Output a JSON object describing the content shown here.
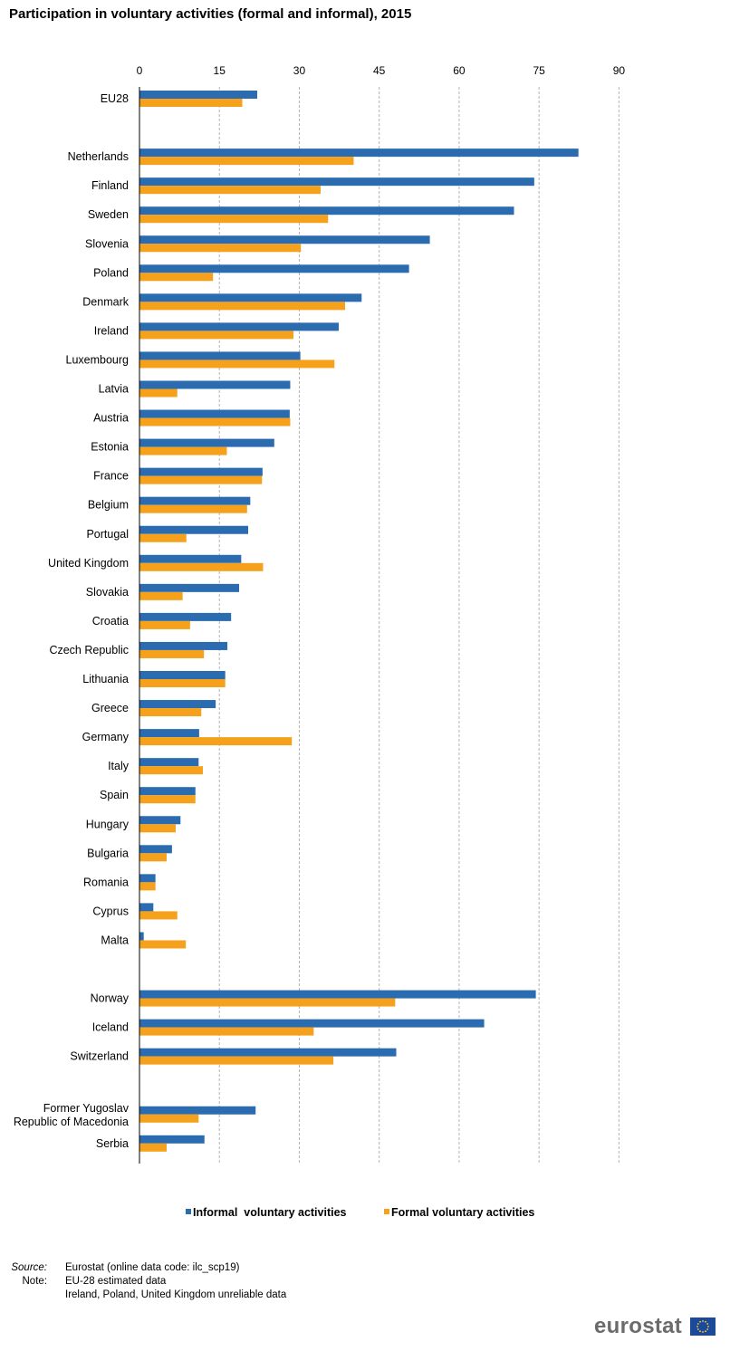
{
  "title": "Participation in voluntary activities (formal and informal), 2015",
  "chart_data": {
    "type": "bar",
    "orientation": "horizontal",
    "title": "Participation in voluntary activities (formal and informal), 2015",
    "xlim": [
      0,
      90
    ],
    "ticks": [
      0,
      15,
      30,
      45,
      60,
      75,
      90
    ],
    "grid": true,
    "legend_position": "bottom",
    "categories": [
      "EU28",
      "",
      "Netherlands",
      "Finland",
      "Sweden",
      "Slovenia",
      "Poland",
      "Denmark",
      "Ireland",
      "Luxembourg",
      "Latvia",
      "Austria",
      "Estonia",
      "France",
      "Belgium",
      "Portugal",
      "United Kingdom",
      "Slovakia",
      "Croatia",
      "Czech Republic",
      "Lithuania",
      "Greece",
      "Germany",
      "Italy",
      "Spain",
      "Hungary",
      "Bulgaria",
      "Romania",
      "Cyprus",
      "Malta",
      "",
      "Norway",
      "Iceland",
      "Switzerland",
      "",
      "Former Yugoslav\nRepublic of Macedonia",
      "Serbia"
    ],
    "series": [
      {
        "name": "Informal  voluntary activities",
        "color": "#2b6cb0",
        "values": [
          22.1,
          null,
          82.4,
          74.1,
          70.3,
          54.5,
          50.6,
          41.7,
          37.4,
          30.2,
          28.3,
          28.2,
          25.3,
          23.1,
          20.8,
          20.4,
          19.1,
          18.7,
          17.2,
          16.5,
          16.1,
          14.3,
          11.2,
          11.1,
          10.5,
          7.7,
          6.1,
          3.0,
          2.6,
          0.8,
          null,
          74.4,
          64.7,
          48.2,
          null,
          21.8,
          12.2
        ]
      },
      {
        "name": "Formal voluntary activities",
        "color": "#f5a11c",
        "values": [
          19.3,
          null,
          40.2,
          34.0,
          35.4,
          30.3,
          13.8,
          38.6,
          28.9,
          36.6,
          7.1,
          28.3,
          16.4,
          23.0,
          20.2,
          8.8,
          23.2,
          8.1,
          9.5,
          12.1,
          16.1,
          11.6,
          28.6,
          11.9,
          10.5,
          6.8,
          5.1,
          3.0,
          7.1,
          8.7,
          null,
          48.0,
          32.7,
          36.4,
          null,
          11.1,
          5.1
        ]
      }
    ]
  },
  "notes": {
    "source_label": "Source:",
    "source_text": "Eurostat (online data code: ilc_scp19)",
    "note_label": "Note:",
    "note_line1": "EU-28 estimated data",
    "note_line2": "Ireland, Poland, United Kingdom unreliable data"
  },
  "logo": {
    "text": "eurostat"
  }
}
